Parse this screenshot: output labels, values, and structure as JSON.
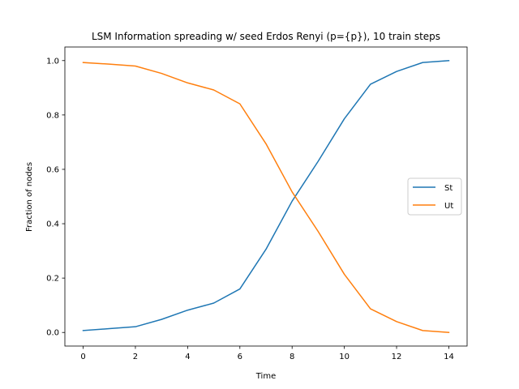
{
  "chart_data": {
    "type": "line",
    "title": "LSM Information spreading w/ seed Erdos Renyi (p={p}), 10 train steps",
    "xlabel": "Time",
    "ylabel": "Fraction of nodes",
    "x": [
      0,
      1,
      2,
      3,
      4,
      5,
      6,
      7,
      8,
      9,
      10,
      11,
      12,
      13,
      14
    ],
    "xlim": [
      -0.7,
      14.7
    ],
    "ylim": [
      -0.05,
      1.05
    ],
    "xticks": [
      0,
      2,
      4,
      6,
      8,
      10,
      12,
      14
    ],
    "xtick_labels": [
      "0",
      "2",
      "4",
      "6",
      "8",
      "10",
      "12",
      "14"
    ],
    "yticks": [
      0.0,
      0.2,
      0.4,
      0.6,
      0.8,
      1.0
    ],
    "ytick_labels": [
      "0.0",
      "0.2",
      "0.4",
      "0.6",
      "0.8",
      "1.0"
    ],
    "grid": false,
    "legend_position": "center right",
    "series": [
      {
        "name": "St",
        "color": "#1f77b4",
        "values": [
          0.007,
          0.014,
          0.021,
          0.048,
          0.082,
          0.108,
          0.16,
          0.306,
          0.483,
          0.63,
          0.786,
          0.913,
          0.96,
          0.993,
          1.0
        ]
      },
      {
        "name": "Ut",
        "color": "#ff7f0e",
        "values": [
          0.993,
          0.987,
          0.98,
          0.953,
          0.918,
          0.892,
          0.841,
          0.694,
          0.517,
          0.371,
          0.214,
          0.087,
          0.04,
          0.007,
          0.0
        ]
      }
    ]
  }
}
